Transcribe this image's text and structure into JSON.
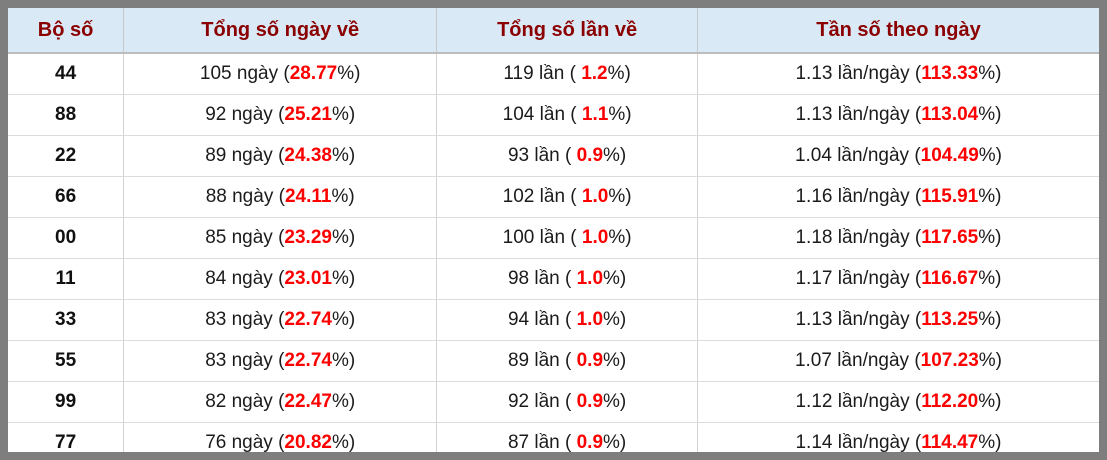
{
  "colors": {
    "frame_gray": "#7e7e7e",
    "header_background": "#d9eaf6",
    "header_text": "#8b0000",
    "highlight_red": "#fe0000",
    "body_text": "#1b1b1b"
  },
  "table": {
    "headers": [
      "Bộ số",
      "Tổng số ngày về",
      "Tổng số lần về",
      "Tần số theo ngày"
    ],
    "rows": [
      {
        "pair": "44",
        "days": {
          "prefix": "105 ngày (",
          "value": "28.77",
          "suffix": "%)"
        },
        "times": {
          "prefix": "119 lần ( ",
          "value": "1.2",
          "suffix": "%)"
        },
        "freq": {
          "prefix": "1.13 lần/ngày (",
          "value": "113.33",
          "suffix": "%)"
        }
      },
      {
        "pair": "88",
        "days": {
          "prefix": "92 ngày (",
          "value": "25.21",
          "suffix": "%)"
        },
        "times": {
          "prefix": "104 lần ( ",
          "value": "1.1",
          "suffix": "%)"
        },
        "freq": {
          "prefix": "1.13 lần/ngày (",
          "value": "113.04",
          "suffix": "%)"
        }
      },
      {
        "pair": "22",
        "days": {
          "prefix": "89 ngày (",
          "value": "24.38",
          "suffix": "%)"
        },
        "times": {
          "prefix": "93 lần ( ",
          "value": "0.9",
          "suffix": "%)"
        },
        "freq": {
          "prefix": "1.04 lần/ngày (",
          "value": "104.49",
          "suffix": "%)"
        }
      },
      {
        "pair": "66",
        "days": {
          "prefix": "88 ngày (",
          "value": "24.11",
          "suffix": "%)"
        },
        "times": {
          "prefix": "102 lần ( ",
          "value": "1.0",
          "suffix": "%)"
        },
        "freq": {
          "prefix": "1.16 lần/ngày (",
          "value": "115.91",
          "suffix": "%)"
        }
      },
      {
        "pair": "00",
        "days": {
          "prefix": "85 ngày (",
          "value": "23.29",
          "suffix": "%)"
        },
        "times": {
          "prefix": "100 lần ( ",
          "value": "1.0",
          "suffix": "%)"
        },
        "freq": {
          "prefix": "1.18 lần/ngày (",
          "value": "117.65",
          "suffix": "%)"
        }
      },
      {
        "pair": "11",
        "days": {
          "prefix": "84 ngày (",
          "value": "23.01",
          "suffix": "%)"
        },
        "times": {
          "prefix": "98 lần ( ",
          "value": "1.0",
          "suffix": "%)"
        },
        "freq": {
          "prefix": "1.17 lần/ngày (",
          "value": "116.67",
          "suffix": "%)"
        }
      },
      {
        "pair": "33",
        "days": {
          "prefix": "83 ngày (",
          "value": "22.74",
          "suffix": "%)"
        },
        "times": {
          "prefix": "94 lần ( ",
          "value": "1.0",
          "suffix": "%)"
        },
        "freq": {
          "prefix": "1.13 lần/ngày (",
          "value": "113.25",
          "suffix": "%)"
        }
      },
      {
        "pair": "55",
        "days": {
          "prefix": "83 ngày (",
          "value": "22.74",
          "suffix": "%)"
        },
        "times": {
          "prefix": "89 lần ( ",
          "value": "0.9",
          "suffix": "%)"
        },
        "freq": {
          "prefix": "1.07 lần/ngày (",
          "value": "107.23",
          "suffix": "%)"
        }
      },
      {
        "pair": "99",
        "days": {
          "prefix": "82 ngày (",
          "value": "22.47",
          "suffix": "%)"
        },
        "times": {
          "prefix": "92 lần ( ",
          "value": "0.9",
          "suffix": "%)"
        },
        "freq": {
          "prefix": "1.12 lần/ngày (",
          "value": "112.20",
          "suffix": "%)"
        }
      },
      {
        "pair": "77",
        "days": {
          "prefix": "76 ngày (",
          "value": "20.82",
          "suffix": "%)"
        },
        "times": {
          "prefix": "87 lần ( ",
          "value": "0.9",
          "suffix": "%)"
        },
        "freq": {
          "prefix": "1.14 lần/ngày (",
          "value": "114.47",
          "suffix": "%)"
        }
      }
    ]
  }
}
